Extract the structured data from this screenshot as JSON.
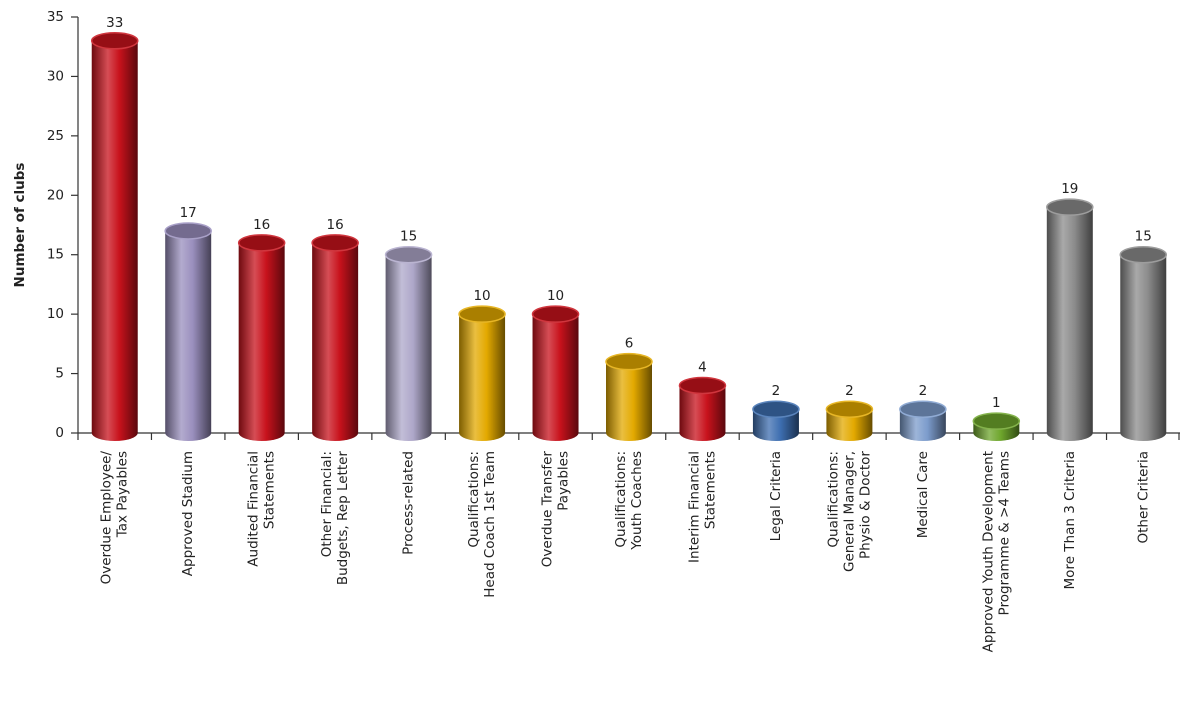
{
  "chart_data": {
    "type": "cylinder-bar",
    "y_label": "Number of clubs",
    "categories": [
      [
        "Overdue Employee/",
        "Tax Payables"
      ],
      [
        "Approved Stadium"
      ],
      [
        "Audited Financial",
        "Statements"
      ],
      [
        "Other Financial:",
        "Budgets, Rep Letter"
      ],
      [
        "Process-related"
      ],
      [
        "Qualifications:",
        "Head Coach 1st Team"
      ],
      [
        "Overdue Transfer",
        "Payables"
      ],
      [
        "Qualifications:",
        "Youth Coaches"
      ],
      [
        "Interim Financial",
        "Statements"
      ],
      [
        "Legal Criteria"
      ],
      [
        "Qualifications:",
        "General Manager,",
        "Physio & Doctor"
      ],
      [
        "Medical Care"
      ],
      [
        "Approved Youth Development",
        "Programme & >4 Teams"
      ],
      [
        "More Than 3 Criteria"
      ],
      [
        "Other Criteria"
      ]
    ],
    "values": [
      33,
      17,
      16,
      16,
      15,
      10,
      10,
      6,
      4,
      2,
      2,
      2,
      1,
      19,
      15
    ],
    "colors": [
      "#c8121c",
      "#9a8fbe",
      "#c8121c",
      "#c8121c",
      "#aea7c9",
      "#e3a900",
      "#c8121c",
      "#e3a900",
      "#c8121c",
      "#3d6eb0",
      "#e3a900",
      "#7c9ccc",
      "#6ea62c",
      "#8c8c8c",
      "#8c8c8c"
    ],
    "ylim": [
      0,
      35
    ],
    "yticks": [
      0,
      5,
      10,
      15,
      20,
      25,
      30,
      35
    ]
  }
}
